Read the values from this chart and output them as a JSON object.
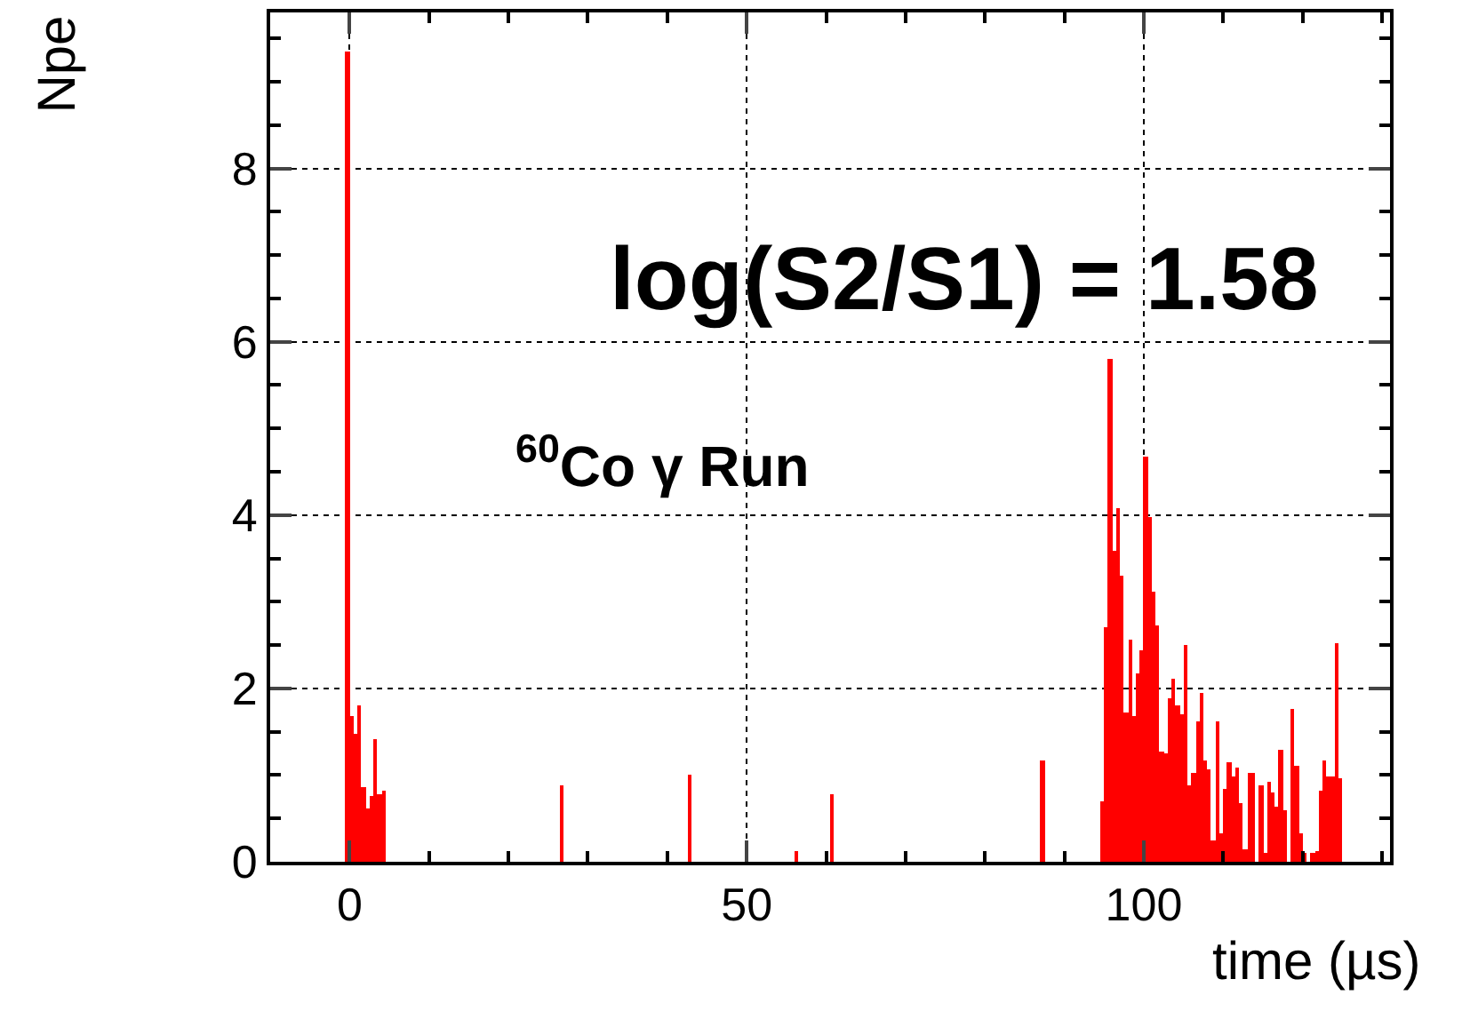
{
  "chart_data": {
    "type": "histogram",
    "xlabel": "time (µs)",
    "ylabel": "Npe",
    "annotations": [
      "log(S2/S1) = 1.58",
      "$^{60}$Co γ Run"
    ],
    "bins": [
      -0.5,
      0,
      0.5,
      1,
      1.5,
      2,
      2.5,
      3,
      3.5,
      4,
      4.5,
      26.5,
      27,
      42.5,
      43,
      56,
      56.5,
      60.5,
      61,
      87,
      87.5,
      94.5,
      95,
      95.5,
      96,
      96.5,
      97,
      97.5,
      98,
      98.5,
      99,
      99.5,
      100,
      100.5,
      101,
      101.5,
      102,
      102.5,
      103,
      103.5,
      104,
      104.5,
      105,
      105.5,
      106,
      106.5,
      107,
      107.5,
      108,
      108.5,
      109,
      109.5,
      110,
      110.5,
      111,
      111.5,
      112,
      112.5,
      113,
      113.5,
      114,
      114.5,
      115,
      115.5,
      116,
      116.5,
      117,
      117.5,
      118,
      118.5,
      119,
      119.5,
      120,
      120.5,
      121,
      121.5,
      122,
      122.5,
      123,
      123.5,
      124,
      124.5,
      125
    ],
    "values": [
      9.35,
      1.68,
      1.47,
      1.8,
      0.86,
      0.62,
      0.76,
      1.42,
      0.78,
      0.82,
      0,
      0.88,
      0,
      1.0,
      0,
      0.12,
      0,
      0.78,
      0,
      1.17,
      0,
      0.7,
      2.7,
      5.81,
      3.58,
      4.08,
      3.3,
      1.73,
      2.56,
      1.69,
      2.17,
      2.43,
      4.68,
      3.97,
      3.11,
      2.73,
      1.27,
      1.25,
      1.88,
      2.11,
      1.81,
      1.71,
      2.51,
      0.89,
      1.03,
      1.61,
      1.94,
      1.16,
      1.07,
      0.24,
      1.61,
      0.32,
      0.84,
      1.14,
      0.98,
      1.08,
      0.68,
      0.15,
      1.03,
      1.03,
      0,
      0.89,
      0.1,
      0.93,
      0.79,
      0.64,
      1.3,
      0.6,
      0,
      1.76,
      1.1,
      0.32,
      0.1,
      0,
      0.1,
      0.12,
      0.83,
      1.16,
      0.99,
      0.99,
      2.52,
      0.96
    ],
    "color": "#ff0000",
    "xlim": [
      -10,
      131
    ],
    "xticks": [
      0,
      50,
      100
    ],
    "ylim": [
      0,
      9.8
    ],
    "yticks": [
      0,
      2,
      4,
      6,
      8
    ],
    "grid": true
  }
}
